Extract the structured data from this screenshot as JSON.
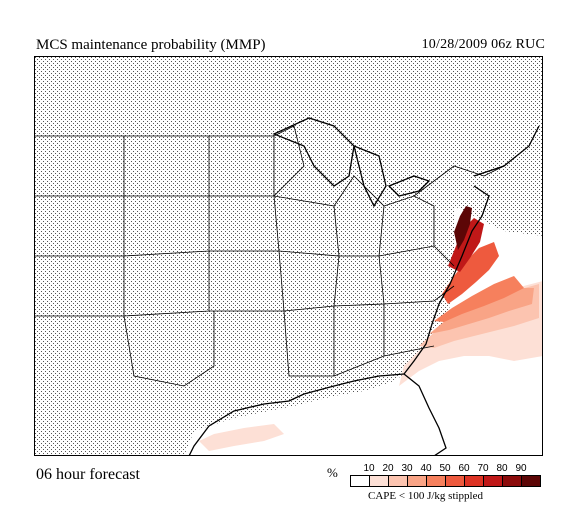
{
  "header": {
    "title": "MCS maintenance probability (MMP)",
    "run_info": "10/28/2009  06z  RUC"
  },
  "footer": {
    "forecast": "06 hour forecast",
    "legend_unit": "%",
    "legend_note": "CAPE < 100 J/kg stippled"
  },
  "legend": {
    "labels": [
      "10",
      "20",
      "30",
      "40",
      "50",
      "60",
      "70",
      "80",
      "90"
    ],
    "colors": [
      "#ffffff",
      "#fde0d6",
      "#fcc4b0",
      "#f9a486",
      "#f6805d",
      "#ee5a3e",
      "#dd3324",
      "#c01818",
      "#8c0c0c",
      "#5c0606"
    ]
  },
  "map": {
    "stipple_color": "#000000",
    "line_color": "#000000"
  }
}
